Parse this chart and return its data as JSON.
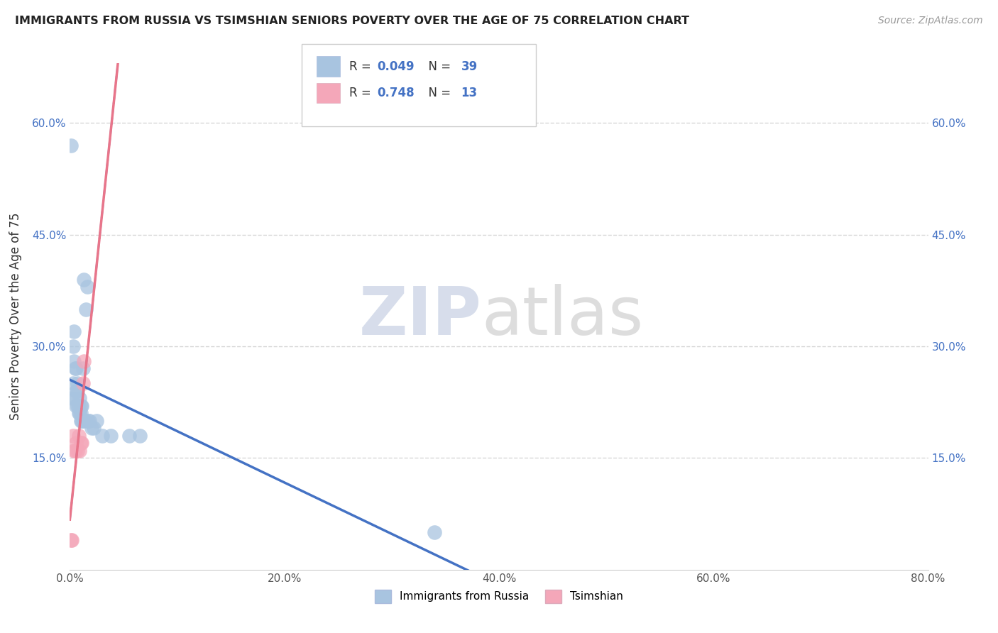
{
  "title": "IMMIGRANTS FROM RUSSIA VS TSIMSHIAN SENIORS POVERTY OVER THE AGE OF 75 CORRELATION CHART",
  "source": "Source: ZipAtlas.com",
  "ylabel": "Seniors Poverty Over the Age of 75",
  "xlim": [
    0.0,
    0.8
  ],
  "ylim": [
    0.0,
    0.68
  ],
  "x_ticks": [
    0.0,
    0.2,
    0.4,
    0.6,
    0.8
  ],
  "x_tick_labels": [
    "0.0%",
    "20.0%",
    "40.0%",
    "60.0%",
    "80.0%"
  ],
  "y_ticks": [
    0.15,
    0.3,
    0.45,
    0.6
  ],
  "y_tick_labels": [
    "15.0%",
    "30.0%",
    "45.0%",
    "60.0%"
  ],
  "russia_R": 0.049,
  "russia_N": 39,
  "tsimshian_R": 0.748,
  "tsimshian_N": 13,
  "russia_color": "#a8c4e0",
  "tsimshian_color": "#f4a7b9",
  "russia_line_color": "#4472c4",
  "tsimshian_line_color": "#e8758a",
  "watermark_zip": "ZIP",
  "watermark_atlas": "atlas",
  "background_color": "#ffffff",
  "grid_color": "#cccccc",
  "russia_points_x": [
    0.001,
    0.002,
    0.003,
    0.003,
    0.004,
    0.004,
    0.005,
    0.005,
    0.006,
    0.006,
    0.006,
    0.007,
    0.007,
    0.007,
    0.008,
    0.008,
    0.009,
    0.009,
    0.01,
    0.01,
    0.01,
    0.011,
    0.011,
    0.012,
    0.012,
    0.013,
    0.014,
    0.015,
    0.016,
    0.017,
    0.018,
    0.02,
    0.022,
    0.025,
    0.03,
    0.038,
    0.055,
    0.065,
    0.34
  ],
  "russia_points_y": [
    0.57,
    0.23,
    0.25,
    0.3,
    0.28,
    0.32,
    0.23,
    0.27,
    0.22,
    0.24,
    0.27,
    0.22,
    0.24,
    0.25,
    0.21,
    0.22,
    0.21,
    0.23,
    0.2,
    0.21,
    0.22,
    0.2,
    0.22,
    0.2,
    0.27,
    0.39,
    0.2,
    0.35,
    0.38,
    0.2,
    0.2,
    0.19,
    0.19,
    0.2,
    0.18,
    0.18,
    0.18,
    0.18,
    0.05
  ],
  "tsimshian_points_x": [
    0.001,
    0.002,
    0.003,
    0.004,
    0.005,
    0.006,
    0.007,
    0.008,
    0.009,
    0.01,
    0.011,
    0.012,
    0.013
  ],
  "tsimshian_points_y": [
    0.04,
    0.04,
    0.18,
    0.16,
    0.16,
    0.17,
    0.16,
    0.18,
    0.16,
    0.17,
    0.17,
    0.25,
    0.28
  ]
}
